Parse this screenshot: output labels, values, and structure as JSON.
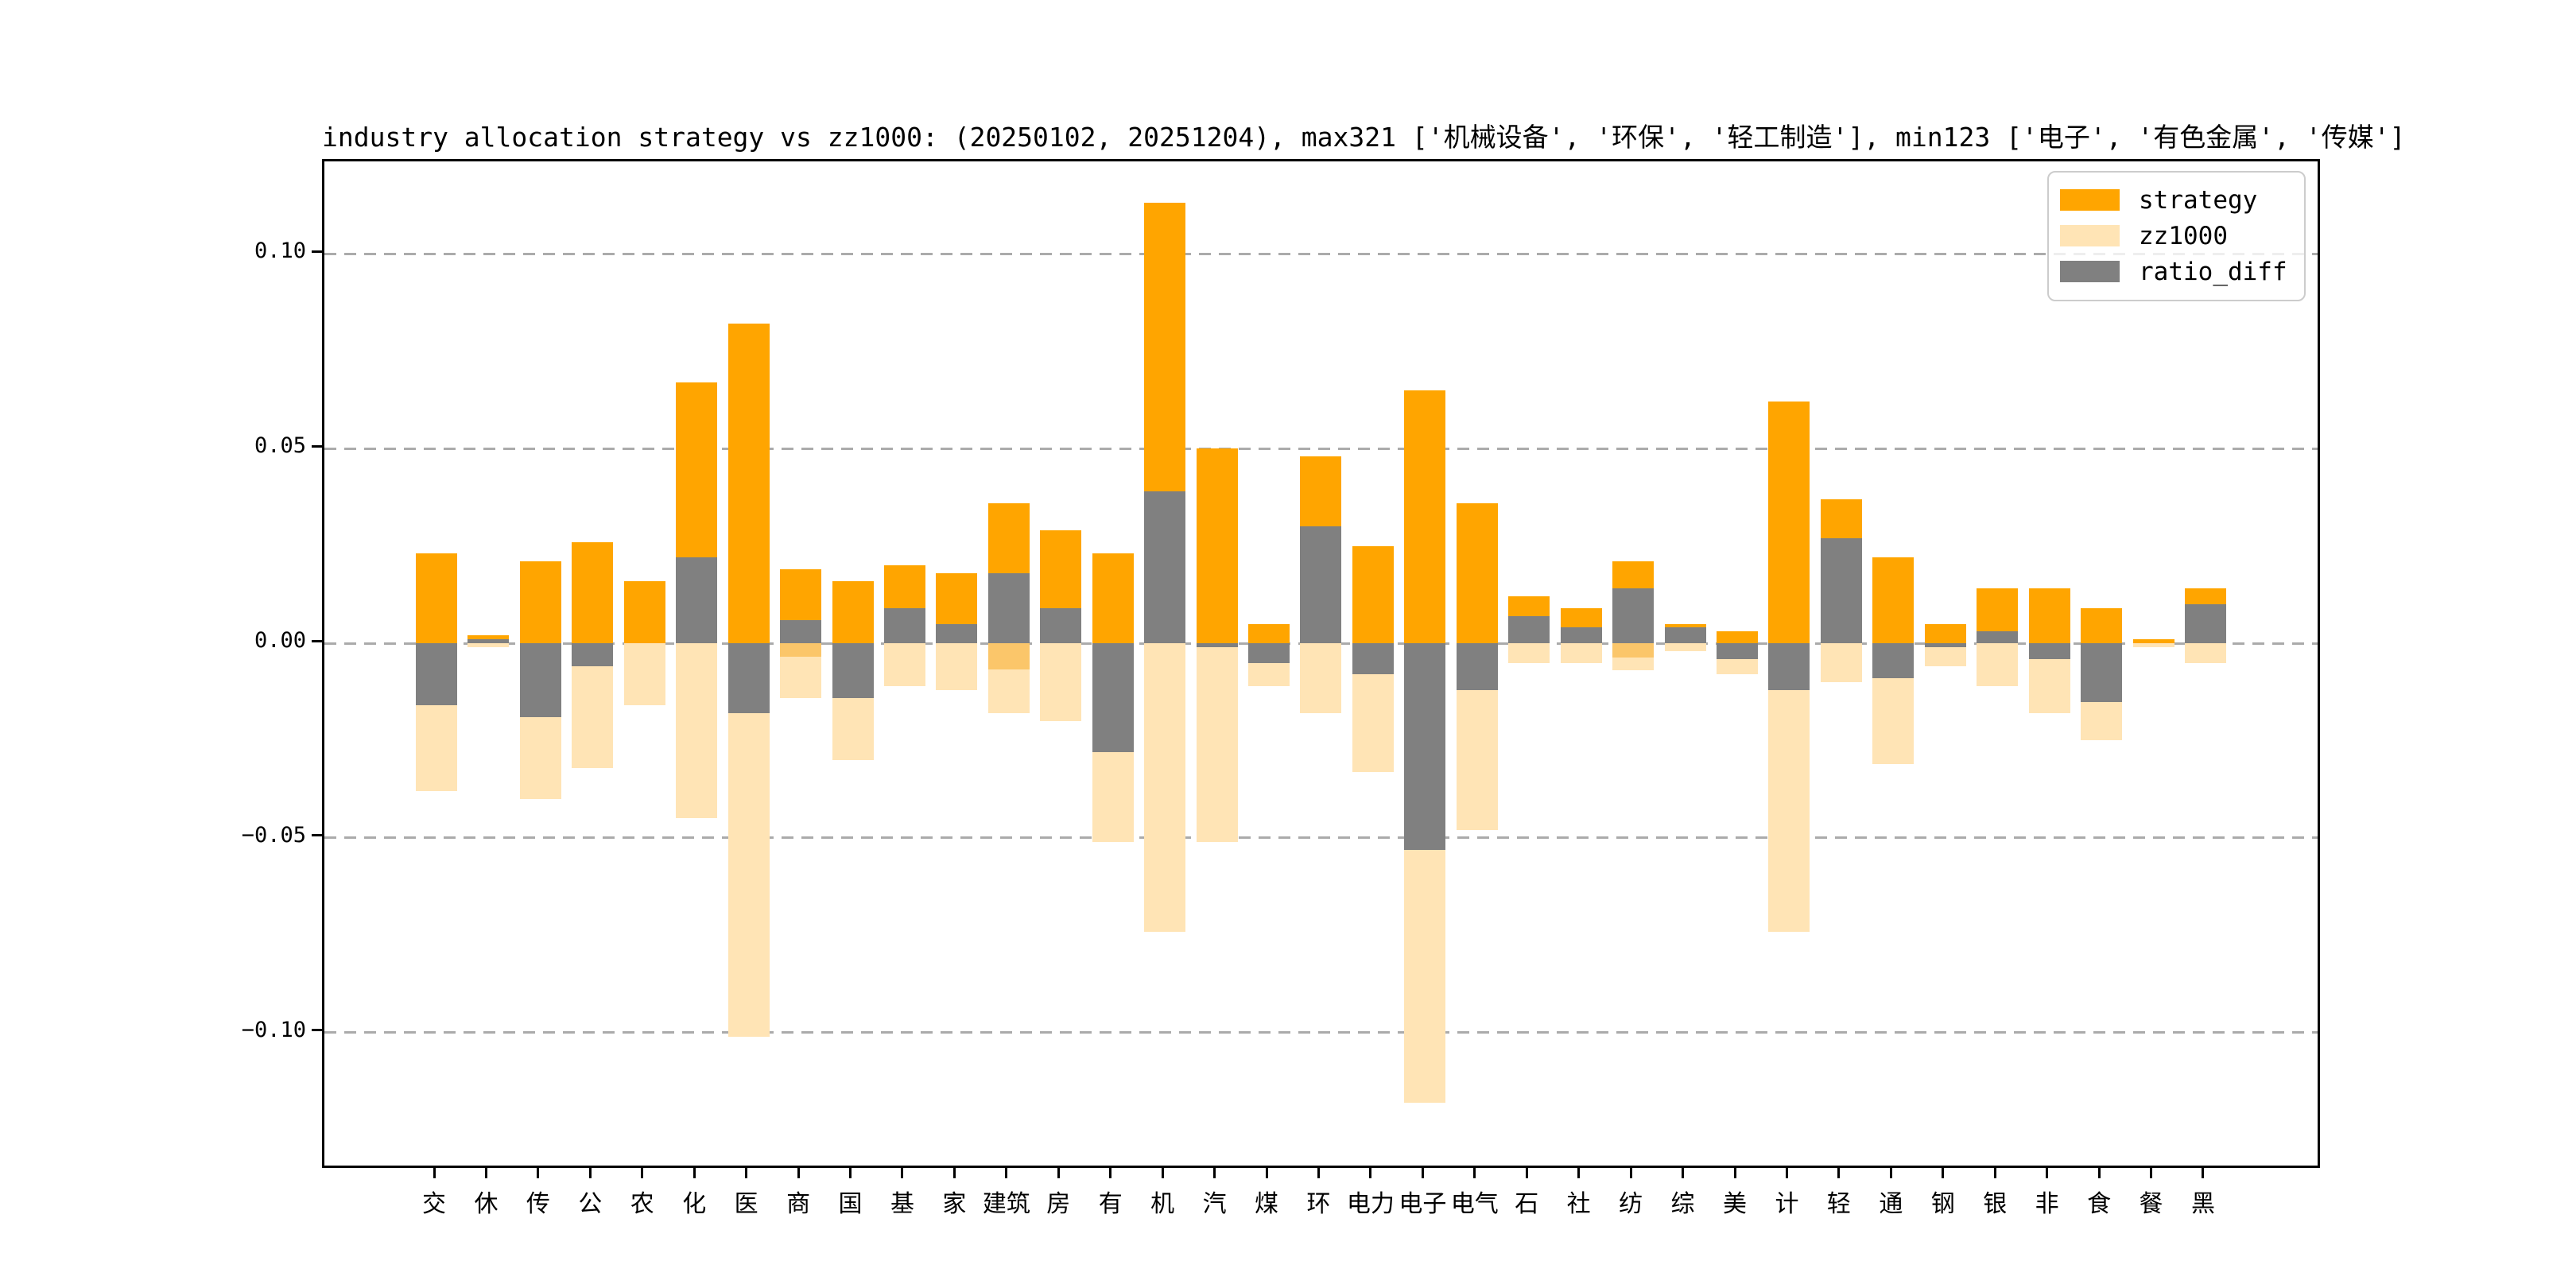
{
  "figure": {
    "title": "industry allocation strategy vs zz1000: (20250102, 20251204), max321 ['机械设备', '环保', '轻工制造'], min123 ['电子', '有色金属', '传媒']",
    "background_color": "#ffffff"
  },
  "legend": {
    "position": "upper right",
    "items": [
      {
        "label": "strategy",
        "color": "#FFA500"
      },
      {
        "label": "zz1000",
        "color": "#FFE4B5"
      },
      {
        "label": "ratio_diff",
        "color": "#808080"
      }
    ]
  },
  "y_axis": {
    "tick_labels": [
      "0.10",
      "0.05",
      "0.00",
      "−0.05",
      "−0.10"
    ],
    "tick_values": [
      0.1,
      0.05,
      0.0,
      -0.05,
      -0.1
    ],
    "gridline_style": "dashed",
    "gridline_color": "#ababab"
  },
  "x_axis": {
    "labels": [
      "交",
      "休",
      "传",
      "公",
      "农",
      "化",
      "医",
      "商",
      "国",
      "基",
      "家",
      "建筑",
      "房",
      "有",
      "机",
      "汽",
      "煤",
      "环",
      "电力",
      "电子",
      "电气",
      "石",
      "社",
      "纺",
      "综",
      "美",
      "计",
      "轻",
      "通",
      "钢",
      "银",
      "非",
      "食",
      "餐",
      "黑"
    ]
  },
  "chart_data": {
    "type": "bar",
    "title": "industry allocation strategy vs zz1000: (20250102, 20251204), max321 ['机械设备', '环保', '轻工制造'], min123 ['电子', '有色金属', '传媒']",
    "categories": [
      "交",
      "休",
      "传",
      "公",
      "农",
      "化",
      "医",
      "商",
      "国",
      "基",
      "家",
      "建筑",
      "房",
      "有",
      "机",
      "汽",
      "煤",
      "环",
      "电力",
      "电子",
      "电气",
      "石",
      "社",
      "纺",
      "综",
      "美",
      "计",
      "轻",
      "通",
      "钢",
      "银",
      "非",
      "食",
      "餐",
      "黑"
    ],
    "series": [
      {
        "name": "strategy",
        "color": "#FFA500",
        "plotted_as": "upward from zero",
        "values": [
          0.023,
          0.002,
          0.021,
          0.026,
          0.016,
          0.067,
          0.082,
          0.019,
          0.016,
          0.02,
          0.018,
          0.036,
          0.029,
          0.023,
          0.113,
          0.05,
          0.005,
          0.048,
          0.025,
          0.065,
          0.036,
          0.012,
          0.009,
          0.021,
          0.005,
          0.003,
          0.062,
          0.037,
          0.022,
          0.005,
          0.014,
          0.014,
          0.009,
          0.001,
          0.014
        ]
      },
      {
        "name": "zz1000",
        "color": "#FFE4B5",
        "plotted_as": "mirrored downward from zero (negated weights)",
        "values": [
          0.038,
          0.001,
          0.04,
          0.032,
          0.016,
          0.045,
          0.101,
          0.014,
          0.03,
          0.011,
          0.012,
          0.018,
          0.02,
          0.051,
          0.074,
          0.051,
          0.011,
          0.018,
          0.033,
          0.118,
          0.048,
          0.005,
          0.005,
          0.007,
          0.002,
          0.008,
          0.074,
          0.01,
          0.031,
          0.006,
          0.011,
          0.018,
          0.025,
          0.001,
          0.005
        ]
      },
      {
        "name": "ratio_diff",
        "color": "#808080",
        "plotted_as": "signed bar from zero, drawn on top",
        "values": [
          -0.016,
          0.001,
          -0.019,
          -0.006,
          0.0,
          0.022,
          -0.018,
          0.006,
          -0.014,
          0.009,
          0.005,
          0.018,
          0.009,
          -0.028,
          0.039,
          -0.001,
          -0.005,
          0.03,
          -0.008,
          -0.053,
          -0.012,
          0.007,
          0.004,
          0.014,
          0.004,
          -0.004,
          -0.012,
          0.027,
          -0.009,
          -0.001,
          0.003,
          -0.004,
          -0.015,
          0.0,
          0.01
        ]
      }
    ],
    "overlap_band": {
      "color": "#FBC66A",
      "description": "darker blend band just below zero where orange and light bars visually overlap",
      "values": [
        0,
        0,
        0,
        0,
        0,
        0,
        0,
        0.0035,
        0,
        0,
        0,
        0.0067,
        0,
        0,
        0,
        0,
        0,
        0,
        0,
        0,
        0,
        0,
        0,
        0.0037,
        0,
        0,
        0,
        0,
        0,
        0,
        0,
        0,
        0,
        0,
        0
      ]
    },
    "ylim": [
      -0.1341,
      0.1237
    ],
    "grid": true,
    "legend_position": "upper right"
  }
}
